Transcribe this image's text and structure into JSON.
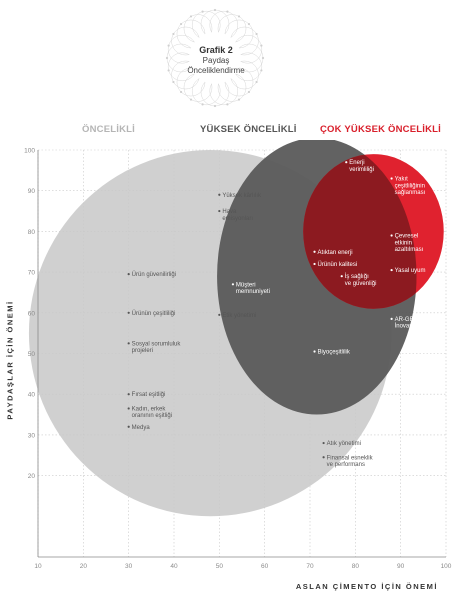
{
  "header": {
    "title": "Grafik 2",
    "subtitle_line1": "Paydaş",
    "subtitle_line2": "Önceliklendirme"
  },
  "categories": {
    "c1": "ÖNCELİKLİ",
    "c2": "YÜKSEK ÖNCELİKLİ",
    "c3": "ÇOK YÜKSEK ÖNCELİKLİ"
  },
  "colors": {
    "light_circle": "#c8c8c8",
    "dark_circle": "#5a5a5a",
    "red_circle": "#e0222f",
    "overlap_dark_red": "#8c1a20",
    "accent_red_text": "#d91f2b"
  },
  "chart_data": {
    "type": "scatter",
    "xlabel": "ASLAN ÇİMENTO İÇİN ÖNEMİ",
    "ylabel": "PAYDAŞLAR İÇİN ÖNEMİ",
    "xlim": [
      10,
      100
    ],
    "ylim": [
      0,
      100
    ],
    "xticks": [
      10,
      20,
      30,
      40,
      50,
      60,
      70,
      80,
      90,
      100
    ],
    "yticks": [
      20,
      30,
      40,
      50,
      60,
      70,
      80,
      90,
      100
    ],
    "grid": "dashed",
    "circles": [
      {
        "category": "ÖNCELİKLİ",
        "center": [
          48,
          55
        ],
        "radius_x": 40,
        "radius_y": 45
      },
      {
        "category": "YÜKSEK ÖNCELİKLİ",
        "center": [
          71.5,
          69
        ],
        "radius_x": 22,
        "radius_y": 34
      },
      {
        "category": "ÇOK YÜKSEK ÖNCELİKLİ",
        "center": [
          84,
          80
        ],
        "radius_x": 15.5,
        "radius_y": 19
      }
    ],
    "points": [
      {
        "label": [
          "Enerji",
          "verimliliği"
        ],
        "x": 78,
        "y": 97
      },
      {
        "label": [
          "Yakıt",
          "çeşitliliğinin",
          "sağlanması"
        ],
        "x": 88,
        "y": 93
      },
      {
        "label": [
          "Yüksek kârlılık"
        ],
        "x": 50,
        "y": 89
      },
      {
        "label": [
          "Hava",
          "emisyonları"
        ],
        "x": 50,
        "y": 85
      },
      {
        "label": [
          "Çevresel",
          "etkinin",
          "azaltılması"
        ],
        "x": 88,
        "y": 79
      },
      {
        "label": [
          "Atıktan enerji"
        ],
        "x": 71,
        "y": 75
      },
      {
        "label": [
          "Ürünün kalitesi"
        ],
        "x": 71,
        "y": 72
      },
      {
        "label": [
          "Yasal uyum"
        ],
        "x": 88,
        "y": 70.5
      },
      {
        "label": [
          "Ürün güvenilirliği"
        ],
        "x": 30,
        "y": 69.5
      },
      {
        "label": [
          "İş sağlığı",
          "ve güvenliği"
        ],
        "x": 77,
        "y": 69
      },
      {
        "label": [
          "Müşteri",
          "memnuniyeti"
        ],
        "x": 53,
        "y": 67
      },
      {
        "label": [
          "Ürünün çeşitliliği"
        ],
        "x": 30,
        "y": 60
      },
      {
        "label": [
          "Etik yönetimi"
        ],
        "x": 50,
        "y": 59.5
      },
      {
        "label": [
          "AR-GE ve",
          "İnovasyon"
        ],
        "x": 88,
        "y": 58.5
      },
      {
        "label": [
          "Sosyal sorumluluk",
          "projeleri"
        ],
        "x": 30,
        "y": 52.5
      },
      {
        "label": [
          "Biyoçeşitlilik"
        ],
        "x": 71,
        "y": 50.5
      },
      {
        "label": [
          "Fırsat eşitliği"
        ],
        "x": 30,
        "y": 40
      },
      {
        "label": [
          "Kadın, erkek",
          "oranının eşitliği"
        ],
        "x": 30,
        "y": 36.5
      },
      {
        "label": [
          "Medya"
        ],
        "x": 30,
        "y": 32
      },
      {
        "label": [
          "Atık yönetimi"
        ],
        "x": 73,
        "y": 28
      },
      {
        "label": [
          "Finansal esneklik",
          "ve performans"
        ],
        "x": 73,
        "y": 24.5
      }
    ]
  }
}
